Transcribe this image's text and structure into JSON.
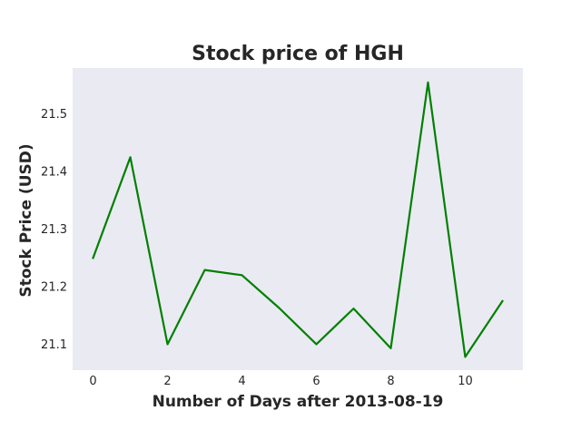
{
  "chart_data": {
    "type": "line",
    "title": "Stock price of HGH",
    "xlabel": "Number of Days after 2013-08-19",
    "ylabel": "Stock Price (USD)",
    "x": [
      0,
      1,
      2,
      3,
      4,
      5,
      6,
      7,
      8,
      9,
      10,
      11
    ],
    "series": [
      {
        "values": [
          21.25,
          21.425,
          21.1,
          21.229,
          21.22,
          21.163,
          21.1,
          21.162,
          21.093,
          21.555,
          21.078,
          21.175
        ],
        "color": "#008000"
      }
    ],
    "xlim": [
      -0.55,
      11.55
    ],
    "ylim": [
      21.055,
      21.58
    ],
    "xticks": [
      0,
      2,
      4,
      6,
      8,
      10
    ],
    "xtick_labels": [
      "0",
      "2",
      "4",
      "6",
      "8",
      "10"
    ],
    "yticks": [
      21.1,
      21.2,
      21.3,
      21.4,
      21.5
    ],
    "ytick_labels": [
      "21.1",
      "21.2",
      "21.3",
      "21.4",
      "21.5"
    ],
    "grid": false,
    "background_color": "#eaeaf2"
  }
}
